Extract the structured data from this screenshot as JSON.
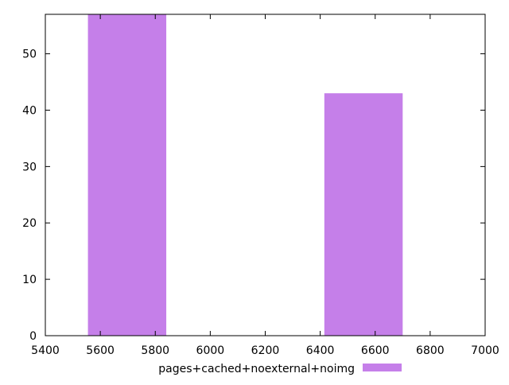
{
  "chart_data": {
    "type": "bar",
    "title": "",
    "xlabel": "",
    "ylabel": "",
    "xlim": [
      5400,
      7000
    ],
    "ylim": [
      0,
      57
    ],
    "x_ticks": [
      5400,
      5600,
      5800,
      6000,
      6200,
      6400,
      6600,
      6800,
      7000
    ],
    "y_ticks": [
      0,
      10,
      20,
      30,
      40,
      50
    ],
    "grid": false,
    "legend_position": "bottom",
    "series": [
      {
        "name": "pages+cached+noexternal+noimg",
        "color": "#c57fe9",
        "bars": [
          {
            "x_start": 5555,
            "x_end": 5840,
            "value": 57
          },
          {
            "x_start": 6415,
            "x_end": 6700,
            "value": 43
          }
        ]
      }
    ]
  }
}
